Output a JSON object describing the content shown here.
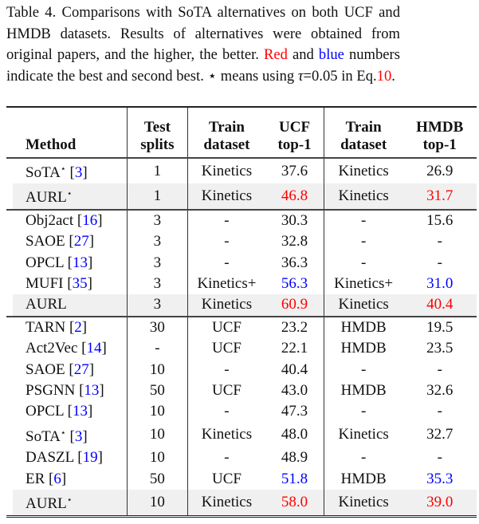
{
  "caption": {
    "prefix": "Table 4.  Comparisons with SoTA alternatives on both UCF and HMDB datasets. Results of alternatives were obtained from original papers, and the higher, the better. ",
    "red_word": "Red",
    "mid1": " and ",
    "blue_word": "blue",
    "mid2": " numbers indicate the best and second best. ",
    "star": "⋆",
    "mid3": " means using ",
    "tau": "τ",
    "mid4": "=0.05 in Eq.",
    "eq_ref": "10",
    "end": "."
  },
  "headers": {
    "method": "Method",
    "test_splits": [
      "Test",
      "splits"
    ],
    "train_ucf": [
      "Train",
      "dataset"
    ],
    "ucf": [
      "UCF",
      "top-1"
    ],
    "train_hmdb": [
      "Train",
      "dataset"
    ],
    "hmdb": [
      "HMDB",
      "top-1"
    ]
  },
  "groups": [
    [
      {
        "method": "SoTA",
        "star": "⋆",
        "ref": "3",
        "splits": "1",
        "train_ucf": "Kinetics",
        "ucf": "37.6",
        "train_hmdb": "Kinetics",
        "hmdb": "26.9"
      },
      {
        "method": "AURL",
        "star": "⋆",
        "splits": "1",
        "train_ucf": "Kinetics",
        "ucf": "46.8",
        "ucf_color": "red",
        "train_hmdb": "Kinetics",
        "hmdb": "31.7",
        "hmdb_color": "red",
        "highlight": true
      }
    ],
    [
      {
        "method": "Obj2act",
        "ref": "16",
        "splits": "3",
        "train_ucf": "-",
        "ucf": "30.3",
        "train_hmdb": "-",
        "hmdb": "15.6"
      },
      {
        "method": "SAOE",
        "ref": "27",
        "splits": "3",
        "train_ucf": "-",
        "ucf": "32.8",
        "train_hmdb": "-",
        "hmdb": "-"
      },
      {
        "method": "OPCL",
        "ref": "13",
        "splits": "3",
        "train_ucf": "-",
        "ucf": "36.3",
        "train_hmdb": "-",
        "hmdb": "-"
      },
      {
        "method": "MUFI",
        "ref": "35",
        "splits": "3",
        "train_ucf": "Kinetics+",
        "ucf": "56.3",
        "ucf_color": "blue",
        "train_hmdb": "Kinetics+",
        "hmdb": "31.0",
        "hmdb_color": "blue"
      },
      {
        "method": "AURL",
        "splits": "3",
        "train_ucf": "Kinetics",
        "ucf": "60.9",
        "ucf_color": "red",
        "train_hmdb": "Kinetics",
        "hmdb": "40.4",
        "hmdb_color": "red",
        "highlight": true
      }
    ],
    [
      {
        "method": "TARN",
        "ref": "2",
        "splits": "30",
        "train_ucf": "UCF",
        "ucf": "23.2",
        "train_hmdb": "HMDB",
        "hmdb": "19.5"
      },
      {
        "method": "Act2Vec",
        "ref": "14",
        "splits": "-",
        "train_ucf": "UCF",
        "ucf": "22.1",
        "train_hmdb": "HMDB",
        "hmdb": "23.5"
      },
      {
        "method": "SAOE",
        "ref": "27",
        "splits": "10",
        "train_ucf": "-",
        "ucf": "40.4",
        "train_hmdb": "-",
        "hmdb": "-"
      },
      {
        "method": "PSGNN",
        "ref": "13",
        "splits": "50",
        "train_ucf": "UCF",
        "ucf": "43.0",
        "train_hmdb": "HMDB",
        "hmdb": "32.6"
      },
      {
        "method": "OPCL",
        "ref": "13",
        "splits": "10",
        "train_ucf": "-",
        "ucf": "47.3",
        "train_hmdb": "-",
        "hmdb": "-"
      },
      {
        "method": "SoTA",
        "star": "⋆",
        "ref": "3",
        "splits": "10",
        "train_ucf": "Kinetics",
        "ucf": "48.0",
        "train_hmdb": "Kinetics",
        "hmdb": "32.7"
      },
      {
        "method": "DASZL",
        "ref": "19",
        "splits": "10",
        "train_ucf": "-",
        "ucf": "48.9",
        "train_hmdb": "-",
        "hmdb": "-"
      },
      {
        "method": "ER",
        "ref": "6",
        "splits": "50",
        "train_ucf": "UCF",
        "ucf": "51.8",
        "ucf_color": "blue",
        "train_hmdb": "HMDB",
        "hmdb": "35.3",
        "hmdb_color": "blue"
      },
      {
        "method": "AURL",
        "star": "⋆",
        "splits": "10",
        "train_ucf": "Kinetics",
        "ucf": "58.0",
        "ucf_color": "red",
        "train_hmdb": "Kinetics",
        "hmdb": "39.0",
        "hmdb_color": "red",
        "highlight": true
      }
    ]
  ]
}
